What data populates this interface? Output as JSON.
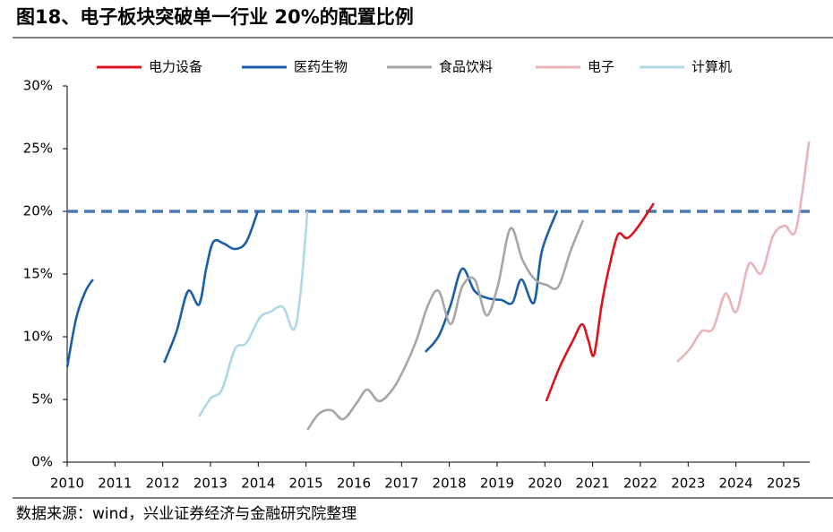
{
  "chart_data": {
    "type": "line",
    "title": "图18、电子板块突破单一行业 20%的配置比例",
    "source": "数据来源：wind，兴业证券经济与金融研究院整理",
    "xlim": [
      2010,
      2025.55
    ],
    "xticks": [
      2010,
      2011,
      2012,
      2013,
      2014,
      2015,
      2016,
      2017,
      2018,
      2019,
      2020,
      2021,
      2022,
      2023,
      2024,
      2025
    ],
    "ylim": [
      0,
      30
    ],
    "yticks": [
      {
        "value": 0,
        "label": "0%"
      },
      {
        "value": 5,
        "label": "5%"
      },
      {
        "value": 10,
        "label": "10%"
      },
      {
        "value": 15,
        "label": "15%"
      },
      {
        "value": 20,
        "label": "20%"
      },
      {
        "value": 25,
        "label": "25%"
      },
      {
        "value": 30,
        "label": "30%"
      }
    ],
    "reference_line": {
      "value": 20,
      "color": "#4a78b0"
    },
    "legend": "top",
    "series": [
      {
        "name": "电力设备",
        "color": "#d9141e",
        "x": [
          2020.03,
          2020.31,
          2020.59,
          2020.78,
          2020.91,
          2021.03,
          2021.19,
          2021.34,
          2021.53,
          2021.72,
          2021.94,
          2022.28
        ],
        "values": [
          4.86,
          7.57,
          9.71,
          11.0,
          9.71,
          8.57,
          12.57,
          15.43,
          18.14,
          17.86,
          18.71,
          20.64
        ]
      },
      {
        "name": "医药生物",
        "color": "#1a5ea8",
        "x": [
          2010,
          2010.19,
          2010.38,
          2010.54,
          null,
          2012.03,
          2012.29,
          2012.53,
          2012.76,
          2012.91,
          2013.06,
          2013.28,
          2013.51,
          2013.75,
          2013.99,
          null,
          2017.5,
          2017.78,
          2018.03,
          2018.27,
          2018.53,
          2018.81,
          2019.09,
          2019.32,
          2019.51,
          2019.77,
          2019.94,
          2020.26
        ],
        "values": [
          7.57,
          11.5,
          13.6,
          14.57,
          null,
          7.93,
          10.43,
          13.64,
          12.57,
          15.43,
          17.57,
          17.43,
          17.0,
          17.57,
          20.0,
          null,
          8.79,
          10.07,
          12.57,
          15.43,
          13.64,
          13.07,
          12.93,
          12.71,
          14.57,
          12.71,
          16.86,
          20.07
        ]
      },
      {
        "name": "食品饮料",
        "color": "#a6a6a6",
        "x": [
          2015.03,
          2015.27,
          2015.53,
          2015.78,
          2016.06,
          2016.28,
          2016.53,
          2016.81,
          2017.07,
          2017.31,
          2017.56,
          2017.78,
          2018.03,
          2018.27,
          2018.53,
          2018.78,
          2019.02,
          2019.28,
          2019.53,
          2019.79,
          2020.03,
          2020.28,
          2020.54,
          2020.8
        ],
        "values": [
          2.57,
          3.86,
          4.14,
          3.43,
          4.71,
          5.79,
          4.86,
          5.79,
          7.57,
          9.71,
          12.57,
          13.64,
          11.0,
          14.0,
          14.57,
          11.71,
          14.14,
          18.64,
          16.14,
          14.57,
          14.14,
          14.0,
          16.86,
          19.29
        ]
      },
      {
        "name": "电子",
        "color": "#e8b4b8",
        "x": [
          2022.77,
          2023.03,
          2023.28,
          2023.52,
          2023.78,
          2024.01,
          2024.27,
          2024.53,
          2024.78,
          2025.02,
          2025.26,
          2025.53
        ],
        "values": [
          8.0,
          9.0,
          10.43,
          10.64,
          13.43,
          12.0,
          15.79,
          15.07,
          18.07,
          18.86,
          18.57,
          25.57
        ]
      },
      {
        "name": "计算机",
        "color": "#aed8e6",
        "x": [
          2012.76,
          2013.0,
          2013.24,
          2013.51,
          2013.75,
          2014.03,
          2014.26,
          2014.52,
          2014.74,
          2014.88,
          2015.03
        ],
        "values": [
          3.64,
          5.07,
          5.79,
          9.0,
          9.5,
          11.5,
          12.0,
          12.36,
          10.57,
          13.29,
          20.0
        ]
      }
    ]
  }
}
